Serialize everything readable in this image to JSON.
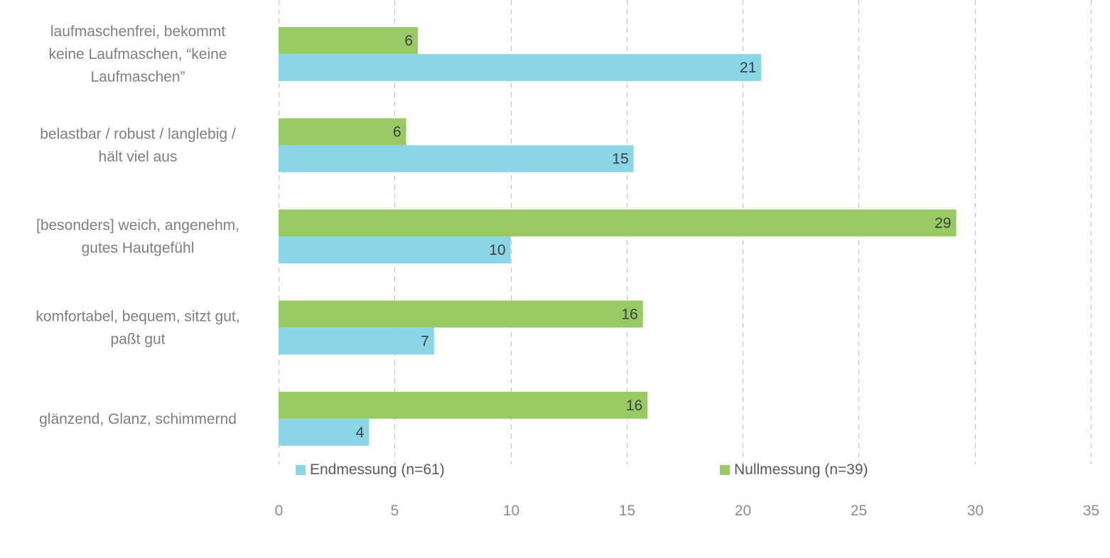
{
  "chart_data": {
    "type": "bar",
    "orientation": "horizontal",
    "categories": [
      [
        "laufmaschenfrei, bekommt",
        "keine Laufmaschen, “keine",
        "Laufmaschen”"
      ],
      [
        "belastbar / robust / langlebig /",
        "hält viel aus"
      ],
      [
        "[besonders] weich, angenehm,",
        "gutes Hautgefühl"
      ],
      [
        "komfortabel, bequem, sitzt gut,",
        "paßt gut"
      ],
      [
        "glänzend, Glanz, schimmernd"
      ]
    ],
    "series": [
      {
        "name": "Nullmessung (n=39)",
        "color": "#97c965",
        "values": [
          6,
          5.5,
          29.2,
          15.7,
          15.9
        ],
        "labels": [
          "6",
          "6",
          "29",
          "16",
          "16"
        ]
      },
      {
        "name": "Endmessung (n=61)",
        "color": "#8ad6e6",
        "values": [
          20.8,
          15.3,
          10,
          6.7,
          3.9
        ],
        "labels": [
          "21",
          "15",
          "10",
          "7",
          "4"
        ]
      }
    ],
    "xlim": [
      0,
      35
    ],
    "xticks": [
      "0",
      "5",
      "10",
      "15",
      "20",
      "25",
      "30",
      "35"
    ],
    "grid": "vertical-dashed",
    "legend_position": "bottom",
    "legend_order": [
      "Endmessung (n=61)",
      "Nullmessung (n=39)"
    ]
  }
}
